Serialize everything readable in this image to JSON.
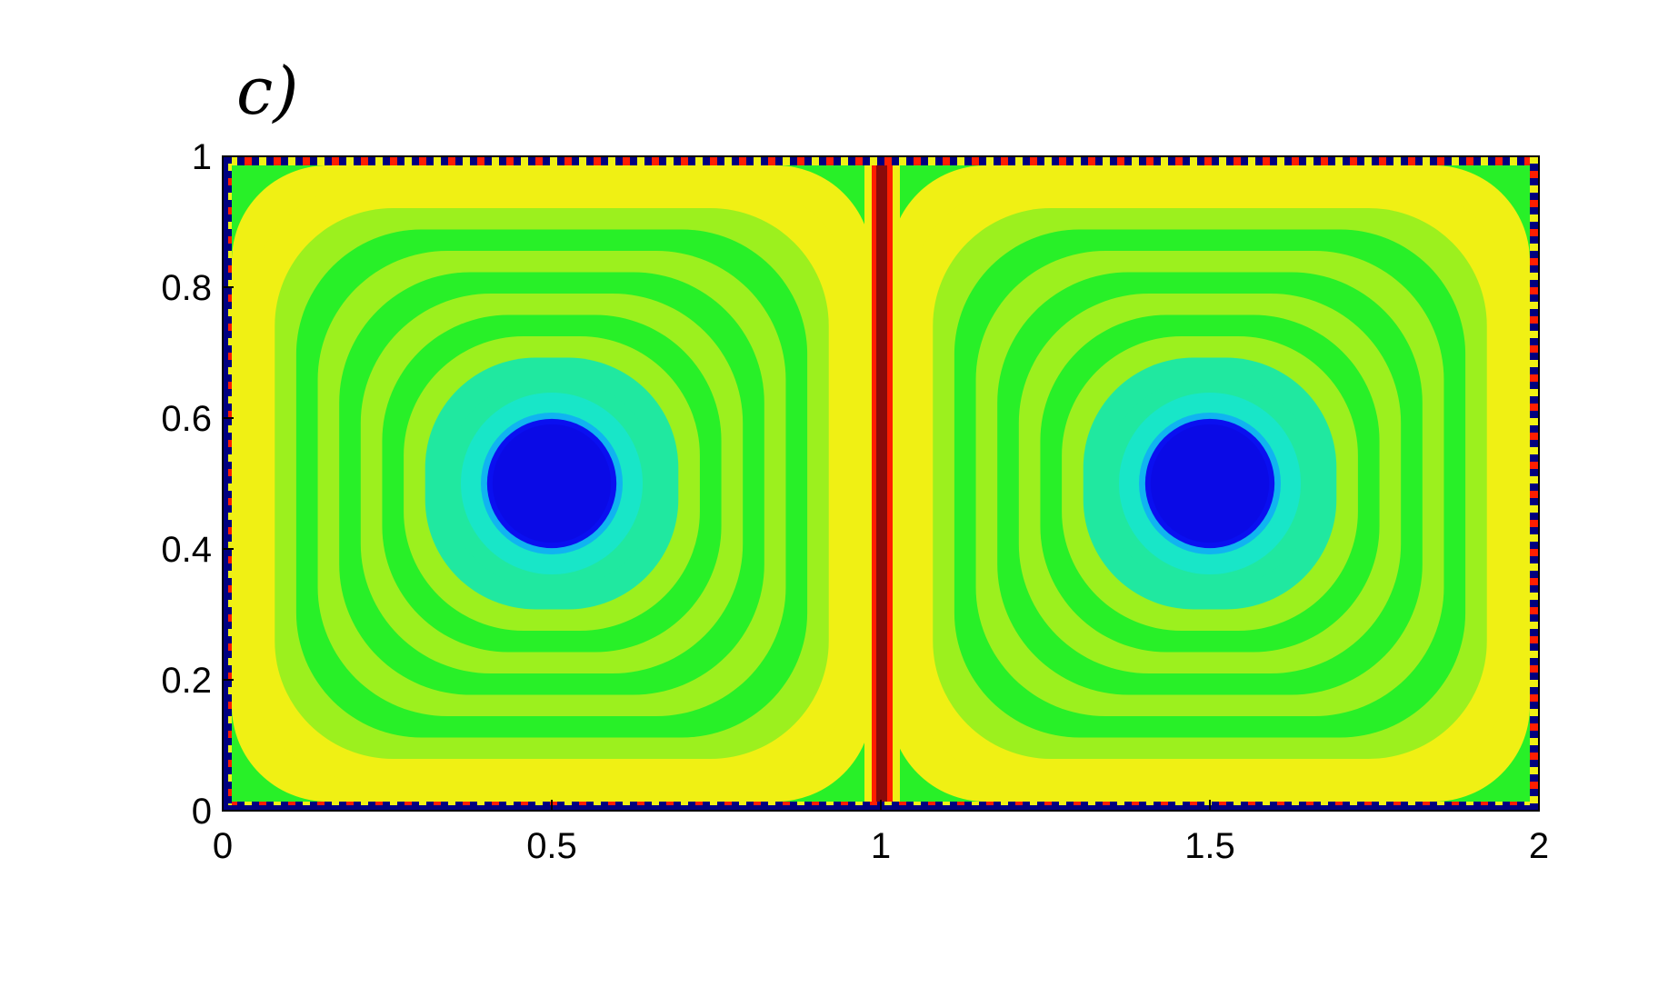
{
  "panel_label": "c)",
  "chart_data": {
    "type": "heatmap",
    "title": "",
    "xlabel": "",
    "ylabel": "",
    "xlim": [
      0,
      2
    ],
    "ylim": [
      0,
      1
    ],
    "x_ticks": [
      "0",
      "0.5",
      "1",
      "1.5",
      "2"
    ],
    "y_ticks": [
      "0",
      "0.2",
      "0.4",
      "0.6",
      "0.8",
      "1"
    ],
    "x_tick_values": [
      0,
      0.5,
      1,
      1.5,
      2
    ],
    "y_tick_values": [
      0,
      0.2,
      0.4,
      0.6,
      0.8,
      1
    ],
    "grid": false,
    "colormap": "jet",
    "structures": [
      {
        "name": "left-vortex-core",
        "center": [
          0.5,
          0.5
        ],
        "radius": 0.09,
        "level": "min"
      },
      {
        "name": "right-vortex-core",
        "center": [
          1.5,
          0.5
        ],
        "radius": 0.09,
        "level": "min"
      },
      {
        "name": "central-wall",
        "x": 1.0,
        "level": "max"
      }
    ],
    "colors": {
      "dark_blue": "#00007f",
      "blue": "#0a0ff0",
      "cyan": "#1ee6e6",
      "green": "#28f028",
      "yellow": "#f0f014",
      "red": "#ff1e00",
      "dark_red": "#8c0a0a"
    }
  }
}
